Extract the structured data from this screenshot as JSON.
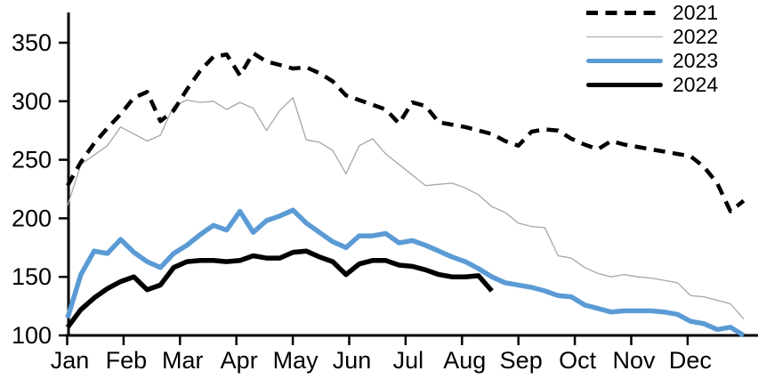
{
  "chart_data": {
    "type": "line",
    "title": "",
    "x_unit": "weekly points across one calendar year",
    "categories_months": [
      "Jan",
      "Feb",
      "Mar",
      "Apr",
      "May",
      "Jun",
      "Jul",
      "Aug",
      "Sep",
      "Oct",
      "Nov",
      "Dec"
    ],
    "y_axis": {
      "min": 100,
      "max": 350,
      "ticks": [
        100,
        150,
        200,
        250,
        300,
        350
      ]
    },
    "grid": "off",
    "legend_position": "top-right",
    "axis_color": "#000000",
    "series": [
      {
        "name": "2021",
        "color": "#000000",
        "style": "dashed",
        "width": 4.5,
        "values": [
          228,
          248,
          264,
          277,
          289,
          303,
          308,
          283,
          292,
          310,
          326,
          338,
          340,
          322,
          341,
          334,
          331,
          328,
          329,
          324,
          317,
          305,
          301,
          297,
          293,
          281,
          299,
          296,
          282,
          280,
          278,
          275,
          272,
          266,
          262,
          274,
          276,
          275,
          268,
          263,
          259,
          266,
          263,
          261,
          259,
          257,
          255,
          253,
          244,
          230,
          206,
          215
        ]
      },
      {
        "name": "2022",
        "color": "#a6a6a6",
        "style": "solid",
        "width": 1.3,
        "values": [
          211,
          246,
          254,
          262,
          278,
          272,
          266,
          271,
          296,
          301,
          299,
          300,
          293,
          299,
          294,
          275,
          292,
          303,
          267,
          265,
          258,
          238,
          262,
          268,
          255,
          246,
          237,
          228,
          229,
          230,
          226,
          220,
          210,
          205,
          196,
          193,
          192,
          168,
          166,
          158,
          153,
          150,
          152,
          150,
          149,
          147,
          145,
          134,
          133,
          130,
          127,
          114
        ]
      },
      {
        "name": "2023",
        "color": "#5b9bd5",
        "style": "solid",
        "width": 5.5,
        "values": [
          115,
          152,
          172,
          170,
          182,
          171,
          163,
          158,
          170,
          177,
          186,
          194,
          190,
          206,
          188,
          198,
          202,
          207,
          196,
          188,
          180,
          175,
          185,
          185,
          187,
          179,
          181,
          177,
          172,
          167,
          163,
          157,
          150,
          145,
          143,
          141,
          138,
          134,
          133,
          126,
          123,
          120,
          121,
          121,
          121,
          120,
          118,
          112,
          110,
          105,
          107,
          100
        ]
      },
      {
        "name": "2024",
        "color": "#000000",
        "style": "solid",
        "width": 5.5,
        "values": [
          107,
          122,
          132,
          140,
          146,
          150,
          139,
          143,
          158,
          163,
          164,
          164,
          163,
          164,
          168,
          166,
          166,
          171,
          172,
          167,
          163,
          152,
          161,
          164,
          164,
          160,
          159,
          156,
          152,
          150,
          150,
          151,
          138
        ]
      }
    ]
  }
}
